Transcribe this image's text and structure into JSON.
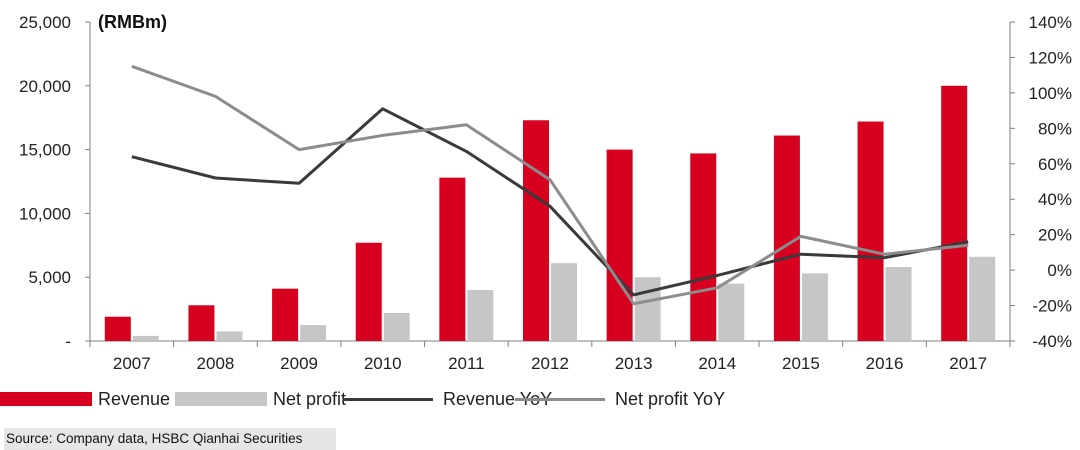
{
  "chart_data": {
    "type": "bar",
    "unit_label": "(RMBm)",
    "categories": [
      "2007",
      "2008",
      "2009",
      "2010",
      "2011",
      "2012",
      "2013",
      "2014",
      "2015",
      "2016",
      "2017"
    ],
    "series": [
      {
        "name": "Revenue",
        "kind": "bar",
        "axis": "left",
        "color": "#d7001e",
        "values": [
          1900,
          2800,
          4100,
          7700,
          12800,
          17300,
          15000,
          14700,
          16100,
          17200,
          20000
        ]
      },
      {
        "name": "Net profit",
        "kind": "bar",
        "axis": "left",
        "color": "#c6c6c6",
        "values": [
          400,
          750,
          1250,
          2200,
          4000,
          6100,
          5000,
          4500,
          5300,
          5800,
          6600
        ]
      },
      {
        "name": "Revenue YoY",
        "kind": "line",
        "axis": "right",
        "color": "#3a3a3a",
        "values": [
          64,
          52,
          49,
          91,
          67,
          36,
          -14,
          -3,
          9,
          7,
          16
        ]
      },
      {
        "name": "Net profit YoY",
        "kind": "line",
        "axis": "right",
        "color": "#8c8c8c",
        "values": [
          115,
          98,
          68,
          76,
          82,
          51,
          -19,
          -10,
          19,
          9,
          14
        ]
      }
    ],
    "left_axis": {
      "min": 0,
      "max": 25000,
      "step": 5000,
      "tick_labels": [
        "-",
        "5,000",
        "10,000",
        "15,000",
        "20,000",
        "25,000"
      ]
    },
    "right_axis": {
      "min": -40,
      "max": 140,
      "step": 20,
      "tick_labels": [
        "-40%",
        "-20%",
        "0%",
        "20%",
        "40%",
        "60%",
        "80%",
        "100%",
        "120%",
        "140%"
      ]
    },
    "grid": false,
    "legend_position": "bottom"
  },
  "source": "Source: Company data, HSBC Qianhai Securities"
}
